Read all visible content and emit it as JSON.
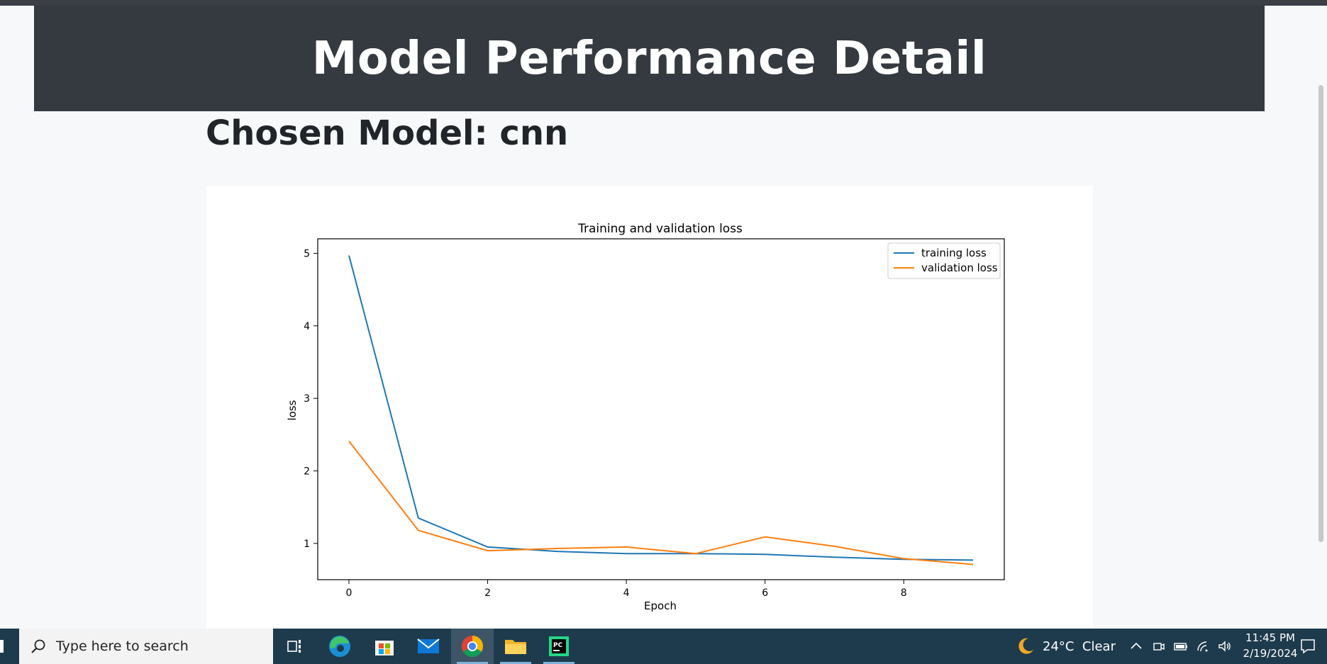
{
  "page": {
    "header_title": "Model Performance Detail",
    "chosen_model": "Chosen Model: cnn"
  },
  "chart_data": {
    "type": "line",
    "title": "Training and validation loss",
    "xlabel": "Epoch",
    "ylabel": "loss",
    "x": [
      0,
      1,
      2,
      3,
      4,
      5,
      6,
      7,
      8,
      9
    ],
    "xlim": [
      -0.45,
      9.45
    ],
    "ylim": [
      0.5,
      5.2
    ],
    "xticks": [
      0,
      2,
      4,
      6,
      8
    ],
    "yticks": [
      1,
      2,
      3,
      4,
      5
    ],
    "legend_position": "top-right",
    "series": [
      {
        "name": "training loss",
        "color": "#1f77b4",
        "values": [
          4.97,
          1.35,
          0.95,
          0.89,
          0.86,
          0.86,
          0.85,
          0.81,
          0.78,
          0.77
        ]
      },
      {
        "name": "validation loss",
        "color": "#ff7f0e",
        "values": [
          2.41,
          1.18,
          0.9,
          0.93,
          0.95,
          0.86,
          1.09,
          0.96,
          0.79,
          0.71
        ]
      }
    ]
  },
  "taskbar": {
    "search_placeholder": "Type here to search",
    "apps": [
      {
        "name": "task-view",
        "icon": "task-view-icon"
      },
      {
        "name": "edge",
        "icon": "edge-icon"
      },
      {
        "name": "store",
        "icon": "store-icon"
      },
      {
        "name": "mail",
        "icon": "mail-icon"
      },
      {
        "name": "chrome",
        "icon": "chrome-icon"
      },
      {
        "name": "file-explorer",
        "icon": "folder-icon"
      },
      {
        "name": "pycharm",
        "icon": "pycharm-icon"
      }
    ],
    "weather": "24°C  Clear",
    "time": "11:45 PM",
    "date": "2/19/2024",
    "pycharm_label": "PC"
  }
}
